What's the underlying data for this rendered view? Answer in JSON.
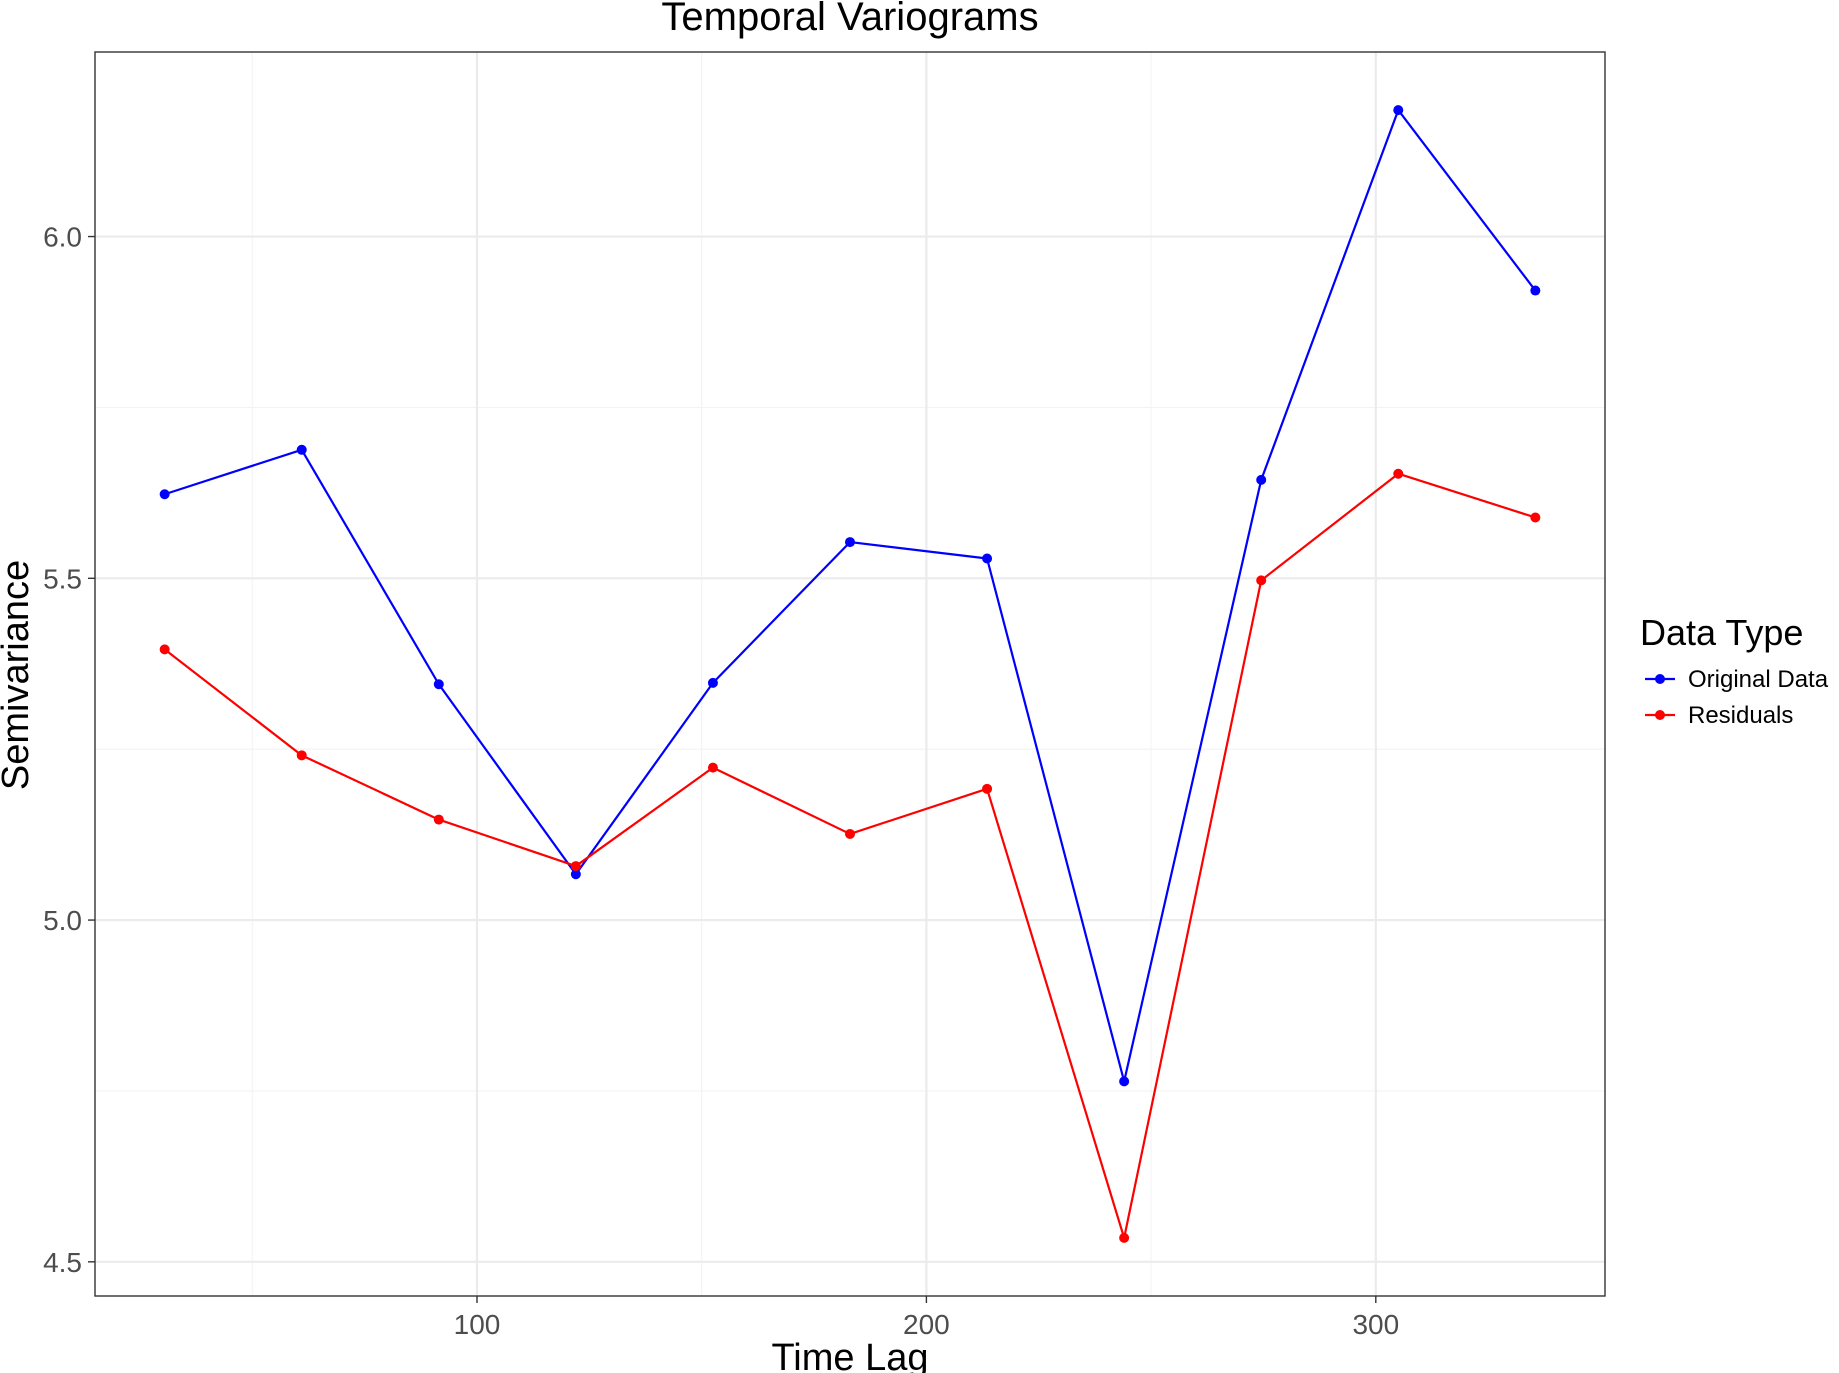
{
  "chart_data": {
    "type": "line",
    "title": "Temporal Variograms",
    "xlabel": "Time Lag",
    "ylabel": "Semivariance",
    "xlim": [
      15,
      351
    ],
    "ylim": [
      4.45,
      6.27
    ],
    "x_major_ticks": [
      100,
      200,
      300
    ],
    "x_minor_ticks": [
      50,
      150,
      250
    ],
    "y_major_ticks": [
      4.5,
      5.0,
      5.5,
      6.0
    ],
    "y_minor_ticks": [
      4.75,
      5.25,
      5.75
    ],
    "x_tick_labels": [
      "100",
      "200",
      "300"
    ],
    "y_tick_labels": [
      "4.5",
      "5.0",
      "5.5",
      "6.0"
    ],
    "grid": true,
    "legend_title": "Data Type",
    "legend_position": "right",
    "x": [
      30.5,
      61,
      91.5,
      122,
      152.5,
      183,
      213.5,
      244,
      274.5,
      305,
      335.5
    ],
    "series": [
      {
        "name": "Original Data",
        "color": "#0000ff",
        "values": [
          5.623,
          5.688,
          5.345,
          5.067,
          5.347,
          5.553,
          5.529,
          4.764,
          5.644,
          6.185,
          5.921
        ]
      },
      {
        "name": "Residuals",
        "color": "#ff0000",
        "values": [
          5.396,
          5.241,
          5.147,
          5.079,
          5.223,
          5.126,
          5.192,
          4.535,
          5.497,
          5.653,
          5.589
        ]
      }
    ]
  }
}
